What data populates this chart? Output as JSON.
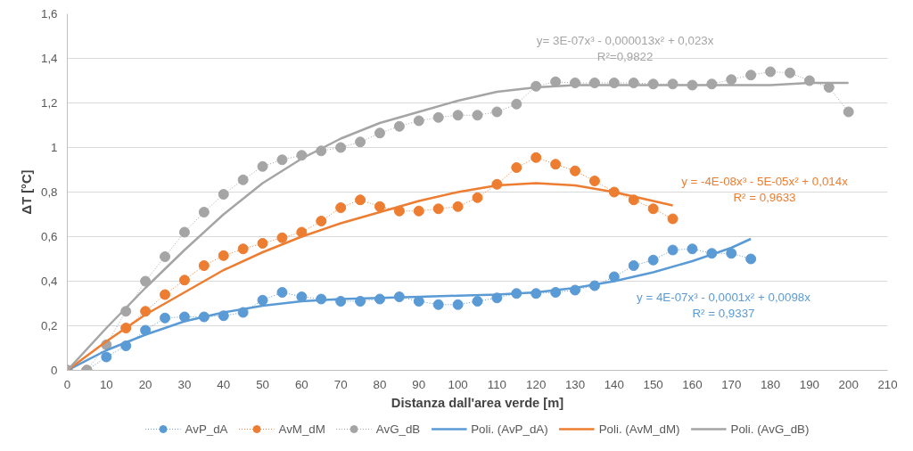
{
  "chart_data": {
    "type": "line",
    "xlabel": "Distanza dall'area verde [m]",
    "ylabel": "ΔT [°C]",
    "xlim": [
      0,
      210
    ],
    "xticks": [
      0,
      10,
      20,
      30,
      40,
      50,
      60,
      70,
      80,
      90,
      100,
      110,
      120,
      130,
      140,
      150,
      160,
      170,
      180,
      190,
      200,
      210
    ],
    "ylim": [
      0,
      1.6
    ],
    "yticks": [
      0,
      {
        "value": 0.2,
        "label": "0,2"
      },
      {
        "value": 0.4,
        "label": "0,4"
      },
      {
        "value": 0.6,
        "label": "0,6"
      },
      {
        "value": 0.8,
        "label": "0,8"
      },
      1,
      {
        "value": 1.2,
        "label": "1,2"
      },
      {
        "value": 1.4,
        "label": "1,4"
      },
      {
        "value": 1.6,
        "label": "1,6"
      }
    ],
    "grid": "y",
    "legend": "bottom",
    "series": [
      {
        "name": "AvP_dA",
        "color": "#5b9bd5",
        "marker": "circle",
        "line_style": "dotted",
        "x": [
          0,
          5,
          10,
          15,
          20,
          25,
          30,
          35,
          40,
          45,
          50,
          55,
          60,
          65,
          70,
          75,
          80,
          85,
          90,
          95,
          100,
          105,
          110,
          115,
          120,
          125,
          130,
          135,
          140,
          145,
          150,
          155,
          160,
          165,
          170,
          175
        ],
        "values": [
          0,
          0,
          0.06,
          0.11,
          0.18,
          0.235,
          0.24,
          0.24,
          0.245,
          0.26,
          0.315,
          0.35,
          0.33,
          0.32,
          0.31,
          0.31,
          0.32,
          0.33,
          0.31,
          0.295,
          0.295,
          0.31,
          0.325,
          0.345,
          0.345,
          0.35,
          0.36,
          0.38,
          0.42,
          0.47,
          0.495,
          0.54,
          0.545,
          0.525,
          0.525,
          0.5
        ]
      },
      {
        "name": "AvM_dM",
        "color": "#ed7d31",
        "marker": "circle",
        "line_style": "dotted",
        "x": [
          0,
          5,
          10,
          15,
          20,
          25,
          30,
          35,
          40,
          45,
          50,
          55,
          60,
          65,
          70,
          75,
          80,
          85,
          90,
          95,
          100,
          105,
          110,
          115,
          120,
          125,
          130,
          135,
          140,
          145,
          150,
          155
        ],
        "values": [
          0,
          0,
          null,
          0.19,
          0.265,
          0.34,
          0.405,
          0.47,
          0.515,
          0.545,
          0.57,
          0.595,
          0.62,
          0.67,
          0.73,
          0.765,
          0.735,
          0.715,
          0.715,
          0.725,
          0.735,
          0.775,
          0.835,
          0.91,
          0.955,
          0.925,
          0.895,
          0.85,
          0.8,
          0.765,
          0.725,
          0.68
        ]
      },
      {
        "name": "AvG_dB",
        "color": "#a5a5a5",
        "marker": "circle",
        "line_style": "dotted",
        "x": [
          0,
          5,
          10,
          15,
          20,
          25,
          30,
          35,
          40,
          45,
          50,
          55,
          60,
          65,
          70,
          75,
          80,
          85,
          90,
          95,
          100,
          105,
          110,
          115,
          120,
          125,
          130,
          135,
          140,
          145,
          150,
          155,
          160,
          165,
          170,
          175,
          180,
          185,
          190,
          195,
          200
        ],
        "values": [
          0,
          0,
          0.115,
          0.265,
          0.4,
          0.51,
          0.62,
          0.71,
          0.79,
          0.855,
          0.915,
          0.945,
          0.965,
          0.985,
          1.0,
          1.025,
          1.065,
          1.095,
          1.12,
          1.135,
          1.145,
          1.145,
          1.16,
          1.195,
          1.275,
          1.295,
          1.29,
          1.29,
          1.29,
          1.29,
          1.285,
          1.285,
          1.28,
          1.285,
          1.305,
          1.325,
          1.34,
          1.335,
          1.3,
          1.27,
          1.16
        ]
      },
      {
        "name": "Poli. (AvP_dA)",
        "color": "#5b9bd5",
        "marker": "none",
        "line_style": "solid",
        "x": [
          0,
          10,
          20,
          30,
          40,
          50,
          60,
          70,
          80,
          90,
          100,
          110,
          120,
          130,
          140,
          150,
          160,
          170,
          175
        ],
        "values": [
          0,
          0.09,
          0.16,
          0.22,
          0.26,
          0.29,
          0.31,
          0.32,
          0.325,
          0.33,
          0.335,
          0.34,
          0.35,
          0.37,
          0.4,
          0.44,
          0.49,
          0.55,
          0.59
        ]
      },
      {
        "name": "Poli. (AvM_dM)",
        "color": "#ed7d31",
        "marker": "none",
        "line_style": "solid",
        "x": [
          0,
          10,
          20,
          30,
          40,
          50,
          60,
          70,
          80,
          90,
          100,
          110,
          120,
          130,
          140,
          150,
          155
        ],
        "values": [
          0,
          0.13,
          0.25,
          0.35,
          0.45,
          0.53,
          0.6,
          0.66,
          0.71,
          0.76,
          0.8,
          0.83,
          0.84,
          0.83,
          0.8,
          0.76,
          0.74
        ]
      },
      {
        "name": "Poli. (AvG_dB)",
        "color": "#a5a5a5",
        "marker": "none",
        "line_style": "solid",
        "x": [
          0,
          10,
          20,
          30,
          40,
          50,
          60,
          70,
          80,
          90,
          100,
          110,
          120,
          130,
          140,
          150,
          160,
          170,
          180,
          190,
          200
        ],
        "values": [
          0,
          0.19,
          0.37,
          0.54,
          0.7,
          0.84,
          0.95,
          1.04,
          1.11,
          1.16,
          1.21,
          1.25,
          1.27,
          1.28,
          1.28,
          1.28,
          1.28,
          1.28,
          1.28,
          1.29,
          1.29
        ]
      }
    ],
    "annotations": [
      "y = 4E-07x³ - 0,0001x² + 0,0098x",
      "R² = 0,9337",
      "y = -4E-08x³ - 5E-05x² + 0,014x",
      "R² = 0,9633",
      "y= 3E-07x³ - 0,000013x² + 0,023x",
      "R²=0,9822"
    ]
  }
}
